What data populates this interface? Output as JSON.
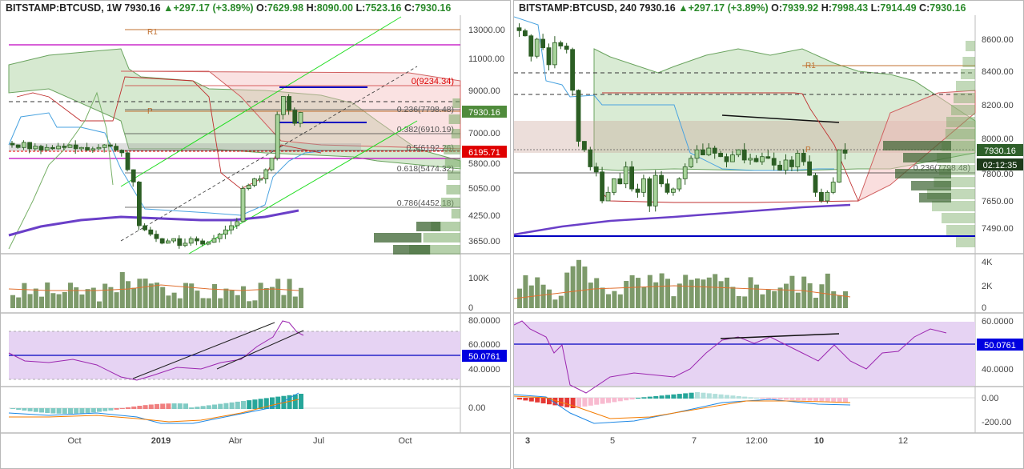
{
  "colors": {
    "up": "#2e6e2a",
    "down": "#1f5a1f",
    "upFill": "#a7d39a",
    "price": "#2e5f2a",
    "rsi": "#9c27b0",
    "rsiBand": "#e6d3f3",
    "blueLabel": "#0000e0",
    "redLabel": "#e00000",
    "fibLine": "#404040",
    "ichUp": "#c8dfc2",
    "ichDown": "#f4c9c9"
  },
  "left": {
    "header": {
      "symbol": "BITSTAMP:BTCUSD,",
      "interval": "1W",
      "last": "7930.16",
      "change": "+297.17 (+3.89%)",
      "o_label": "O:",
      "o": "7629.98",
      "h_label": "H:",
      "h": "8090.00",
      "l_label": "L:",
      "l": "7523.16",
      "c_label": "C:",
      "c": "7930.16",
      "arrow": "▲"
    },
    "price_axis": [
      "13000.00",
      "11000.00",
      "9000.00",
      "7000.00",
      "5800.00",
      "5050.00",
      "4250.00",
      "3650.00"
    ],
    "price_label": "7930.16",
    "red_label": "6195.71",
    "fib": {
      "f0": "0(9234.34)",
      "f236": "0.236(7798.48)",
      "f382": "0.382(6910.19)",
      "f5": "0.5(6192.26)",
      "f618": "0.618(5474.32)",
      "f786": "0.786(4452.18)"
    },
    "pivot_r1": "R1",
    "pivot_p": "P",
    "vol_axis": [
      "100K",
      "0"
    ],
    "rsi_axis": [
      "80.0000",
      "60.0000",
      "40.0000"
    ],
    "rsi_label": "50.0761",
    "macd_axis": [
      "0.00"
    ],
    "time_axis": [
      "Oct",
      "2019",
      "Abr",
      "Jul",
      "Oct"
    ]
  },
  "right": {
    "header": {
      "symbol": "BITSTAMP:BTCUSD,",
      "interval": "240",
      "last": "7930.16",
      "change": "+297.17 (+3.89%)",
      "o_label": "O:",
      "o": "7939.92",
      "h_label": "H:",
      "h": "7998.43",
      "l_label": "L:",
      "l": "7914.49",
      "c_label": "C:",
      "c": "7930.16",
      "arrow": "▲"
    },
    "price_axis": [
      "8600.00",
      "8400.00",
      "8200.00",
      "8000.00",
      "7800.00",
      "7650.00",
      "7490.00"
    ],
    "price_label": "7930.16",
    "timer_label": "02:12:35",
    "fib": {
      "f236": "0.236(7798.48)"
    },
    "pivot_r1": "R1",
    "pivot_p": "P",
    "vol_axis": [
      "4K",
      "2K",
      "0"
    ],
    "rsi_axis": [
      "60.0000",
      "40.0000"
    ],
    "rsi_label": "50.0761",
    "macd_axis": [
      "0.00",
      "-200.00"
    ],
    "time_axis": [
      "3",
      "5",
      "7",
      "12:00",
      "10",
      "12"
    ]
  }
}
